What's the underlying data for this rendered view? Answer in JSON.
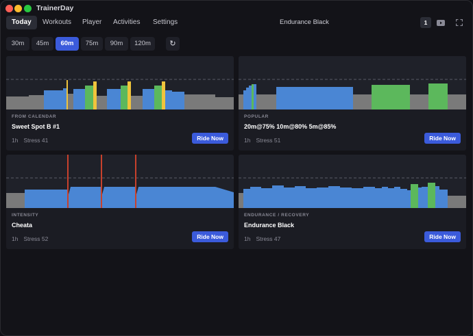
{
  "app": {
    "title": "TrainerDay"
  },
  "nav": {
    "tabs": [
      {
        "label": "Today",
        "active": true
      },
      {
        "label": "Workouts"
      },
      {
        "label": "Player"
      },
      {
        "label": "Activities"
      },
      {
        "label": "Settings"
      }
    ],
    "current_workout": "Endurance Black",
    "badge": "1",
    "icons": [
      "youtube-icon",
      "fullscreen-icon"
    ]
  },
  "durations": {
    "options": [
      "30m",
      "45m",
      "60m",
      "75m",
      "90m",
      "120m"
    ],
    "selected": "60m",
    "refresh_icon": "↻"
  },
  "colors": {
    "zone_gray": "#7a7a7a",
    "zone_blue": "#4a86d4",
    "zone_green": "#5cb85c",
    "zone_yellow": "#f0c43c",
    "zone_red": "#c8412c",
    "button_blue": "#3b5bdb"
  },
  "cards": [
    {
      "category": "FROM CALENDAR",
      "title": "Sweet Spot B #1",
      "duration": "1h",
      "stress": "Stress 41",
      "button": "Ride Now"
    },
    {
      "category": "POPULAR",
      "title": "20m@75% 10m@80% 5m@85%",
      "duration": "1h",
      "stress": "Stress 51",
      "button": "Ride Now"
    },
    {
      "category": "INTENSITY",
      "title": "Cheata",
      "duration": "1h",
      "stress": "Stress 52",
      "button": "Ride Now"
    },
    {
      "category": "ENDURANCE / RECOVERY",
      "title": "Endurance Black",
      "duration": "1h",
      "stress": "Stress 47",
      "button": "Ride Now"
    }
  ]
}
